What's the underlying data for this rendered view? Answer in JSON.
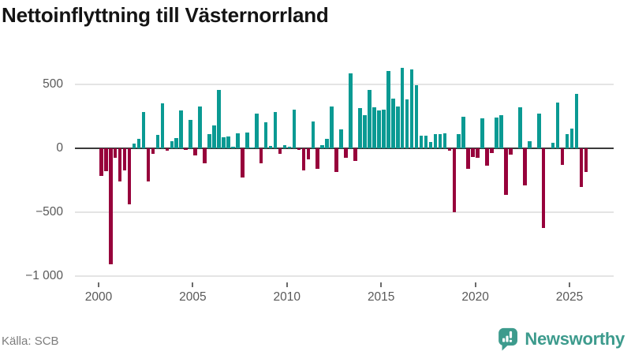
{
  "title": "Nettoinflyttning till Västernorrland",
  "source": "Källa: SCB",
  "brand": {
    "name": "Newsworthy",
    "color": "#3d9b8d"
  },
  "colors": {
    "positive": "#0a9a93",
    "negative": "#97013b",
    "grid": "#e4e4e4",
    "zero_line": "#3a3a3a",
    "axis_text": "#595959"
  },
  "chart_data": {
    "type": "bar",
    "title": "Nettoinflyttning till Västernorrland",
    "xlabel": "",
    "ylabel": "",
    "frequency": "quarterly",
    "grid": "horizontal",
    "ylim": [
      -1000,
      650
    ],
    "y_ticks": [
      {
        "value": 500,
        "label": "500"
      },
      {
        "value": 0,
        "label": "0"
      },
      {
        "value": -500,
        "label": "−500"
      },
      {
        "value": -1000,
        "label": "−1 000"
      }
    ],
    "x_ticks": [
      {
        "year": 2000,
        "label": "2000"
      },
      {
        "year": 2005,
        "label": "2005"
      },
      {
        "year": 2010,
        "label": "2010"
      },
      {
        "year": 2015,
        "label": "2015"
      },
      {
        "year": 2020,
        "label": "2020"
      },
      {
        "year": 2025,
        "label": "2025"
      }
    ],
    "years": [
      {
        "year": 2000,
        "q": [
          -216,
          -179,
          -908,
          -76
        ]
      },
      {
        "year": 2001,
        "q": [
          -261,
          -175,
          -440,
          37
        ]
      },
      {
        "year": 2002,
        "q": [
          72,
          284,
          -261,
          -45
        ]
      },
      {
        "year": 2003,
        "q": [
          105,
          354,
          -21,
          58
        ]
      },
      {
        "year": 2004,
        "q": [
          78,
          298,
          -14,
          222
        ]
      },
      {
        "year": 2005,
        "q": [
          -55,
          325,
          -120,
          110
        ]
      },
      {
        "year": 2006,
        "q": [
          180,
          455,
          85,
          90
        ]
      },
      {
        "year": 2007,
        "q": [
          10,
          120,
          -230,
          125
        ]
      },
      {
        "year": 2008,
        "q": [
          5,
          273,
          -117,
          202
        ]
      },
      {
        "year": 2009,
        "q": [
          21,
          284,
          -41,
          27
        ]
      },
      {
        "year": 2010,
        "q": [
          15,
          304,
          -15,
          -175
        ]
      },
      {
        "year": 2011,
        "q": [
          -86,
          212,
          -158,
          27
        ]
      },
      {
        "year": 2012,
        "q": [
          72,
          329,
          -185,
          146
        ]
      },
      {
        "year": 2013,
        "q": [
          -76,
          586,
          -100,
          315
        ]
      },
      {
        "year": 2014,
        "q": [
          257,
          459,
          319,
          295
        ]
      },
      {
        "year": 2015,
        "q": [
          304,
          603,
          391,
          329
        ]
      },
      {
        "year": 2016,
        "q": [
          627,
          380,
          617,
          494
        ]
      },
      {
        "year": 2017,
        "q": [
          99,
          99,
          51,
          113
        ]
      },
      {
        "year": 2018,
        "q": [
          113,
          119,
          -19,
          -498
        ]
      },
      {
        "year": 2019,
        "q": [
          113,
          247,
          -158,
          -66
        ]
      },
      {
        "year": 2020,
        "q": [
          -76,
          232,
          -138,
          -35
        ]
      },
      {
        "year": 2021,
        "q": [
          243,
          257,
          -365,
          -51
        ]
      },
      {
        "year": 2022,
        "q": [
          0,
          319,
          -292,
          58
        ]
      },
      {
        "year": 2023,
        "q": [
          0,
          270,
          -625,
          0
        ]
      },
      {
        "year": 2024,
        "q": [
          41,
          360,
          -128,
          113
        ]
      },
      {
        "year": 2025,
        "q": [
          154,
          428,
          -302,
          -185
        ]
      }
    ]
  }
}
